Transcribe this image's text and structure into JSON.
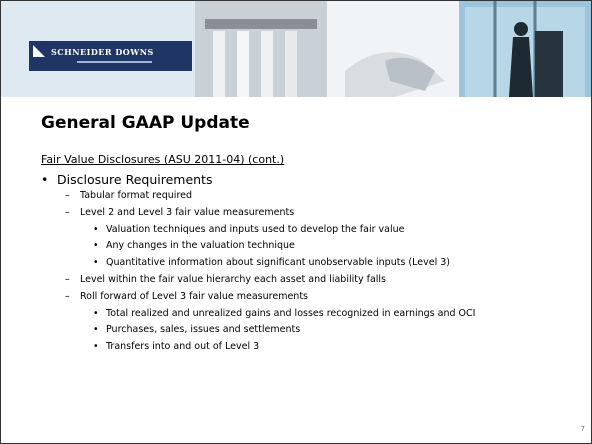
{
  "header": {
    "logo": "SCHNEIDER DOWNS"
  },
  "title": "General GAAP Update",
  "subtitle": "Fair Value Disclosures (ASU 2011-04) (cont.)",
  "items": [
    {
      "text": "Disclosure Requirements",
      "children": [
        {
          "text": "Tabular format required"
        },
        {
          "text": "Level 2 and Level 3 fair value measurements",
          "children": [
            {
              "text": "Valuation techniques and inputs used to develop the fair value"
            },
            {
              "text": "Any changes in the valuation technique"
            },
            {
              "text": "Quantitative information about significant unobservable inputs (Level 3)"
            }
          ]
        },
        {
          "text": "Level within the fair value hierarchy each asset and liability falls"
        },
        {
          "text": "Roll forward of Level 3 fair value measurements",
          "children": [
            {
              "text": "Total realized and unrealized gains and losses recognized in earnings and OCI"
            },
            {
              "text": "Purchases, sales, issues and settlements"
            },
            {
              "text": "Transfers into and out of Level 3"
            }
          ]
        }
      ]
    }
  ],
  "page_number": "7"
}
